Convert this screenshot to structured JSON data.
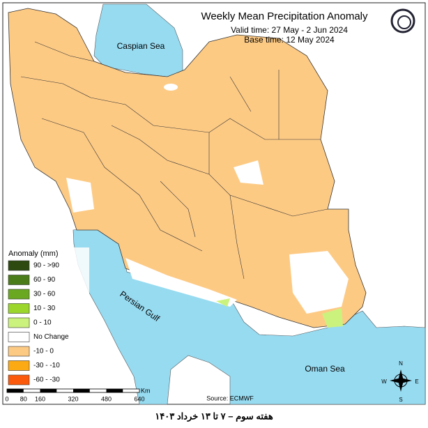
{
  "header": {
    "title": "Weekly Mean Precipitation Anomaly",
    "valid_time": "Valid time: 27 May - 2 Jun 2024",
    "base_time": "Base time: 12 May 2024"
  },
  "labels": {
    "caspian": "Caspian Sea",
    "gulf": "Persian Gulf",
    "oman": "Oman Sea"
  },
  "legend": {
    "title": "Anomaly (mm)",
    "items": [
      {
        "label": "90 - >90",
        "color": "#2e4a10"
      },
      {
        "label": "60 - 90",
        "color": "#4b7c1a"
      },
      {
        "label": "30 - 60",
        "color": "#6aa822"
      },
      {
        "label": "10 - 30",
        "color": "#9ad62c"
      },
      {
        "label": "0 - 10",
        "color": "#ccf27e"
      },
      {
        "label": "No Change",
        "color": "#ffffff"
      },
      {
        "label": "-10 - 0",
        "color": "#fdca84"
      },
      {
        "label": "-30 - -10",
        "color": "#fcaa14"
      },
      {
        "label": "-60 - -30",
        "color": "#fb5a0c"
      }
    ]
  },
  "scale": {
    "unit": "Km",
    "ticks": [
      "0",
      "80",
      "160",
      "320",
      "480",
      "640"
    ]
  },
  "source": "Source: ECMWF",
  "compass": {
    "n": "N",
    "e": "E",
    "s": "S",
    "w": "W"
  },
  "footer": "هفته سوم – ۷ تا ۱۳ خرداد ۱۴۰۳"
}
